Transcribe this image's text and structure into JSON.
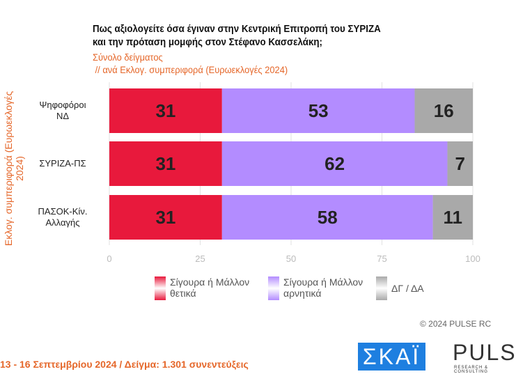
{
  "chart_data": {
    "type": "bar",
    "orientation": "horizontal-stacked",
    "title": "Πως αξιολογείτε όσα έγιναν στην Κεντρική Επιτροπή του ΣΥΡΙΖΑ και την πρόταση μομφής στον Στέφανο Κασσελάκη;",
    "subtitle_1": "Σύνολο δείγματος",
    "subtitle_2": " // ανά Εκλογ. συμπεριφορά (Ευρωεκλογές 2024)",
    "ylabel": "Εκλογ. συμπεριφορά (Ευρωεκλογές 2024)",
    "categories": [
      "Ψηφοφόροι ΝΔ",
      "ΣΥΡΙΖΑ-ΠΣ",
      "ΠΑΣΟΚ-Κίν. Αλλαγής"
    ],
    "series": [
      {
        "name": "Σίγουρα ή Μάλλον θετικά",
        "color": "#e8193c",
        "values": [
          31,
          31,
          31
        ]
      },
      {
        "name": "Σίγουρα ή Μάλλον αρνητικά",
        "color": "#b38cff",
        "values": [
          53,
          62,
          58
        ]
      },
      {
        "name": "ΔΓ / ΔΑ",
        "color": "#a9a9a9",
        "values": [
          16,
          7,
          11
        ]
      }
    ],
    "xlim": [
      0,
      100
    ],
    "xticks": [
      "0",
      "25",
      "50",
      "75",
      "100"
    ],
    "grid": true,
    "legend": "bottom"
  },
  "cat_lines": [
    [
      "Ψηφοφόροι",
      "ΝΔ"
    ],
    [
      "ΣΥΡΙΖΑ-ΠΣ"
    ],
    [
      "ΠΑΣΟΚ-Κίν.",
      "Αλλαγής"
    ]
  ],
  "legend_lines": [
    [
      "Σίγουρα ή Μάλλον",
      "θετικά"
    ],
    [
      "Σίγουρα ή Μάλλον",
      "αρνητικά"
    ],
    [
      "ΔΓ / ΔΑ"
    ]
  ],
  "copyright": "© 2024 PULSE RC",
  "footer": "13 - 16 Σεπτεμβρίου 2024  /  Δείγμα:  1.301 συνεντεύξεις",
  "logos": {
    "skai": "ΣΚΑΪ",
    "pulse": "PULSE",
    "pulse_sub": "RESEARCH & CONSULTING"
  }
}
